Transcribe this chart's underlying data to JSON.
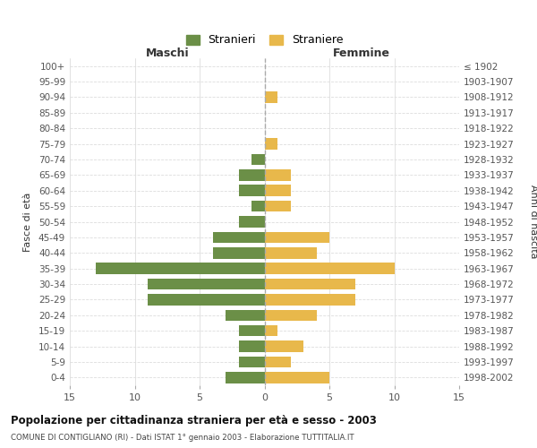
{
  "age_groups": [
    "100+",
    "95-99",
    "90-94",
    "85-89",
    "80-84",
    "75-79",
    "70-74",
    "65-69",
    "60-64",
    "55-59",
    "50-54",
    "45-49",
    "40-44",
    "35-39",
    "30-34",
    "25-29",
    "20-24",
    "15-19",
    "10-14",
    "5-9",
    "0-4"
  ],
  "birth_years": [
    "≤ 1902",
    "1903-1907",
    "1908-1912",
    "1913-1917",
    "1918-1922",
    "1923-1927",
    "1928-1932",
    "1933-1937",
    "1938-1942",
    "1943-1947",
    "1948-1952",
    "1953-1957",
    "1958-1962",
    "1963-1967",
    "1968-1972",
    "1973-1977",
    "1978-1982",
    "1983-1987",
    "1988-1992",
    "1993-1997",
    "1998-2002"
  ],
  "maschi": [
    0,
    0,
    0,
    0,
    0,
    0,
    1,
    2,
    2,
    1,
    2,
    4,
    4,
    13,
    9,
    9,
    3,
    2,
    2,
    2,
    3
  ],
  "femmine": [
    0,
    0,
    1,
    0,
    0,
    1,
    0,
    2,
    2,
    2,
    0,
    5,
    4,
    10,
    7,
    7,
    4,
    1,
    3,
    2,
    5
  ],
  "maschi_color": "#6b8f47",
  "femmine_color": "#e8b84b",
  "background_color": "#ffffff",
  "grid_color": "#cccccc",
  "grid_color_h": "#dddddd",
  "center_line_color": "#aaaaaa",
  "title": "Popolazione per cittadinanza straniera per età e sesso - 2003",
  "subtitle": "COMUNE DI CONTIGLIANO (RI) - Dati ISTAT 1° gennaio 2003 - Elaborazione TUTTITALIA.IT",
  "xlabel_left": "Maschi",
  "xlabel_right": "Femmine",
  "ylabel_left": "Fasce di età",
  "ylabel_right": "Anni di nascita",
  "legend_maschi": "Stranieri",
  "legend_femmine": "Straniere",
  "xlim": 15
}
